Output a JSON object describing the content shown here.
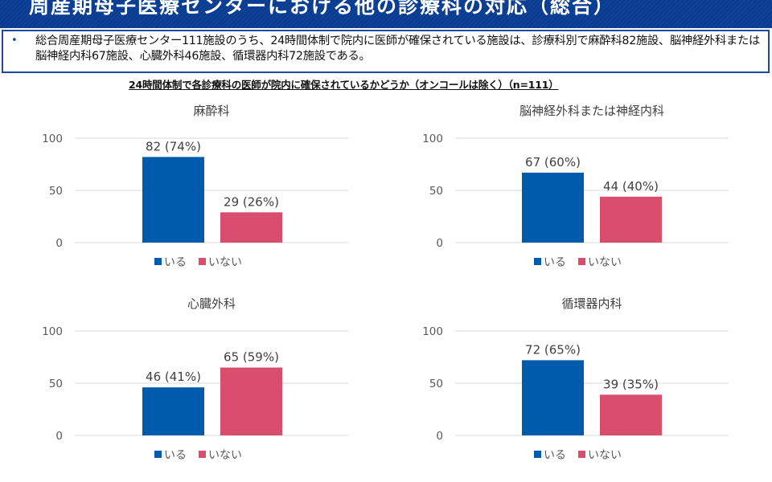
{
  "header": {
    "title": "周産期母子医療センターにおける他の診療科の対応（総合）"
  },
  "summary": {
    "bullet": "•",
    "text": "総合周産期母子医療センター111施設のうち、24時間体制で院内に医師が確保されている施設は、診療科別で麻酔科82施設、脳神経外科または脳神経内科67施設、心臓外科46施設、循環器内科72施設である。"
  },
  "chart_heading": "24時間体制で各診療科の医師が院内に確保されているかどうか（オンコールは除く）（n=111）",
  "colors": {
    "iru": "#005bac",
    "inai": "#d94e6c",
    "grid": "#e2e2e2"
  },
  "chart_data": [
    {
      "type": "bar",
      "title": "麻酔科",
      "categories": [
        "いる",
        "いない"
      ],
      "values": [
        82,
        29
      ],
      "data_labels": [
        "82 (74%)",
        "29 (26%)"
      ],
      "ylim": [
        0,
        100
      ],
      "yticks": [
        "0",
        "50",
        "100"
      ],
      "grid": true,
      "legend": [
        "いる",
        "いない"
      ],
      "legend_position": "bottom"
    },
    {
      "type": "bar",
      "title": "脳神経外科または神経内科",
      "categories": [
        "いる",
        "いない"
      ],
      "values": [
        67,
        44
      ],
      "data_labels": [
        "67 (60%)",
        "44 (40%)"
      ],
      "ylim": [
        0,
        100
      ],
      "yticks": [
        "0",
        "50",
        "100"
      ],
      "grid": true,
      "legend": [
        "いる",
        "いない"
      ],
      "legend_position": "bottom"
    },
    {
      "type": "bar",
      "title": "心臓外科",
      "categories": [
        "いる",
        "いない"
      ],
      "values": [
        46,
        65
      ],
      "data_labels": [
        "46 (41%)",
        "65 (59%)"
      ],
      "ylim": [
        0,
        100
      ],
      "yticks": [
        "0",
        "50",
        "100"
      ],
      "grid": true,
      "legend": [
        "いる",
        "いない"
      ],
      "legend_position": "bottom"
    },
    {
      "type": "bar",
      "title": "循環器内科",
      "categories": [
        "いる",
        "いない"
      ],
      "values": [
        72,
        39
      ],
      "data_labels": [
        "72 (65%)",
        "39 (35%)"
      ],
      "ylim": [
        0,
        100
      ],
      "yticks": [
        "0",
        "50",
        "100"
      ],
      "grid": true,
      "legend": [
        "いる",
        "いない"
      ],
      "legend_position": "bottom"
    }
  ]
}
